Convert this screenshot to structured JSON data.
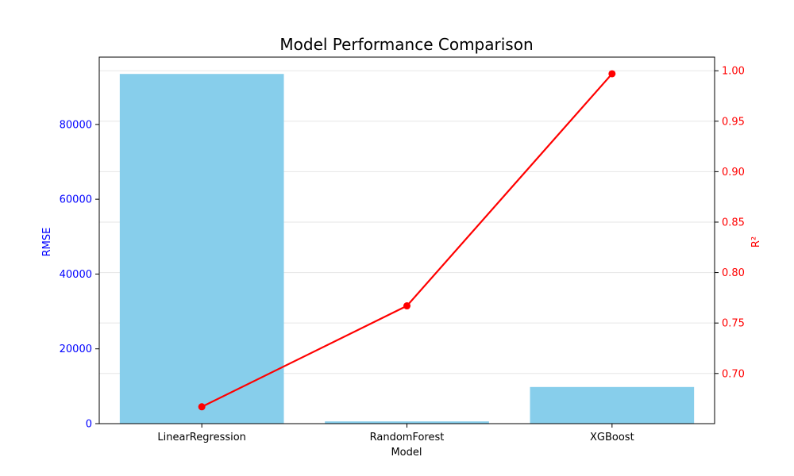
{
  "chart_data": {
    "type": "bar",
    "title": "Model Performance Comparison",
    "xlabel": "Model",
    "categories": [
      "LinearRegression",
      "RandomForest",
      "XGBoost"
    ],
    "series": [
      {
        "name": "RMSE",
        "type": "bar",
        "axis": "left",
        "color": "#87ceeb",
        "values": [
          93500,
          600,
          9800
        ]
      },
      {
        "name": "R²",
        "type": "line",
        "axis": "right",
        "color": "#ff0000",
        "values": [
          0.667,
          0.767,
          0.997
        ]
      }
    ],
    "y_left": {
      "label": "RMSE",
      "color": "#0000ff",
      "ylim": [
        0,
        98000
      ],
      "ticks": [
        0,
        20000,
        40000,
        60000,
        80000
      ]
    },
    "y_right": {
      "label": "R²",
      "color": "#ff0000",
      "ylim": [
        0.6503,
        1.0135
      ],
      "ticks": [
        "0.70",
        "0.75",
        "0.80",
        "0.85",
        "0.90",
        "0.95",
        "1.00"
      ]
    },
    "grid": true
  }
}
